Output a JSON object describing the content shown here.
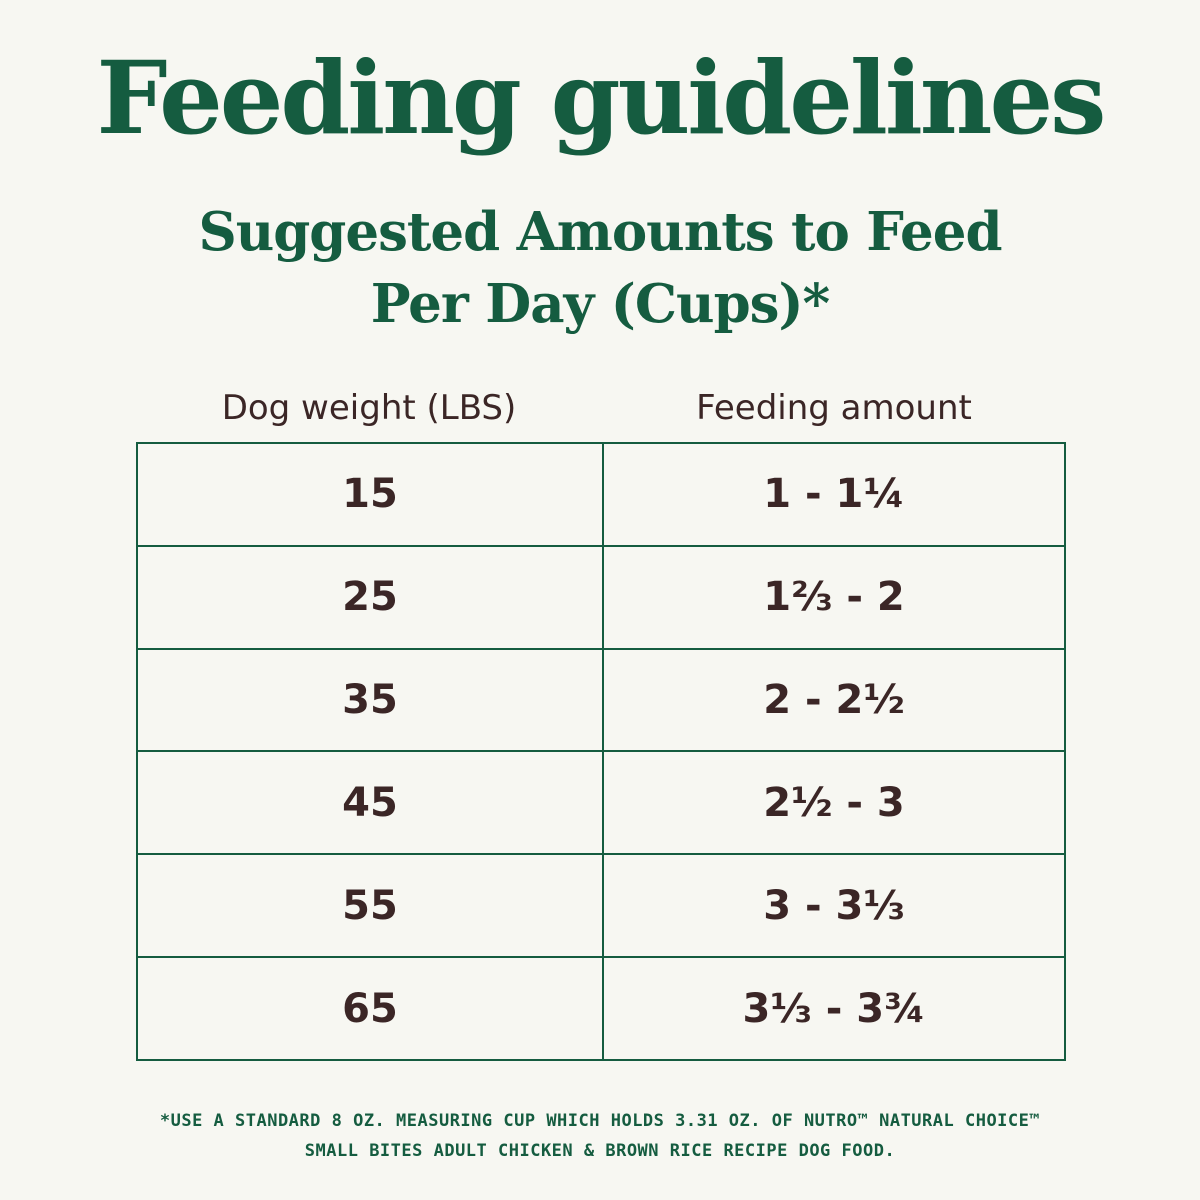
{
  "title": "Feeding guidelines",
  "subtitle": {
    "line1": "Suggested Amounts to Feed",
    "line2": "Per Day (Cups)*"
  },
  "table": {
    "headers": {
      "weight": "Dog weight (LBS)",
      "amount": "Feeding amount"
    },
    "rows": [
      {
        "weight": "15",
        "amount": "1 - 1¼"
      },
      {
        "weight": "25",
        "amount": "1⅔ - 2"
      },
      {
        "weight": "35",
        "amount": "2 - 2½"
      },
      {
        "weight": "45",
        "amount": "2½ - 3"
      },
      {
        "weight": "55",
        "amount": "3 - 3⅓"
      },
      {
        "weight": "65",
        "amount": "3⅓ - 3¾"
      }
    ]
  },
  "footnote": {
    "line1": "*USE A STANDARD 8 OZ. MEASURING CUP WHICH HOLDS 3.31 OZ. OF NUTRO™ NATURAL CHOICE™",
    "line2": "SMALL BITES ADULT CHICKEN & BROWN RICE RECIPE DOG FOOD."
  },
  "colors": {
    "brand_green": "#155c40",
    "text_brown": "#3b2626",
    "background": "#f7f7f2"
  }
}
